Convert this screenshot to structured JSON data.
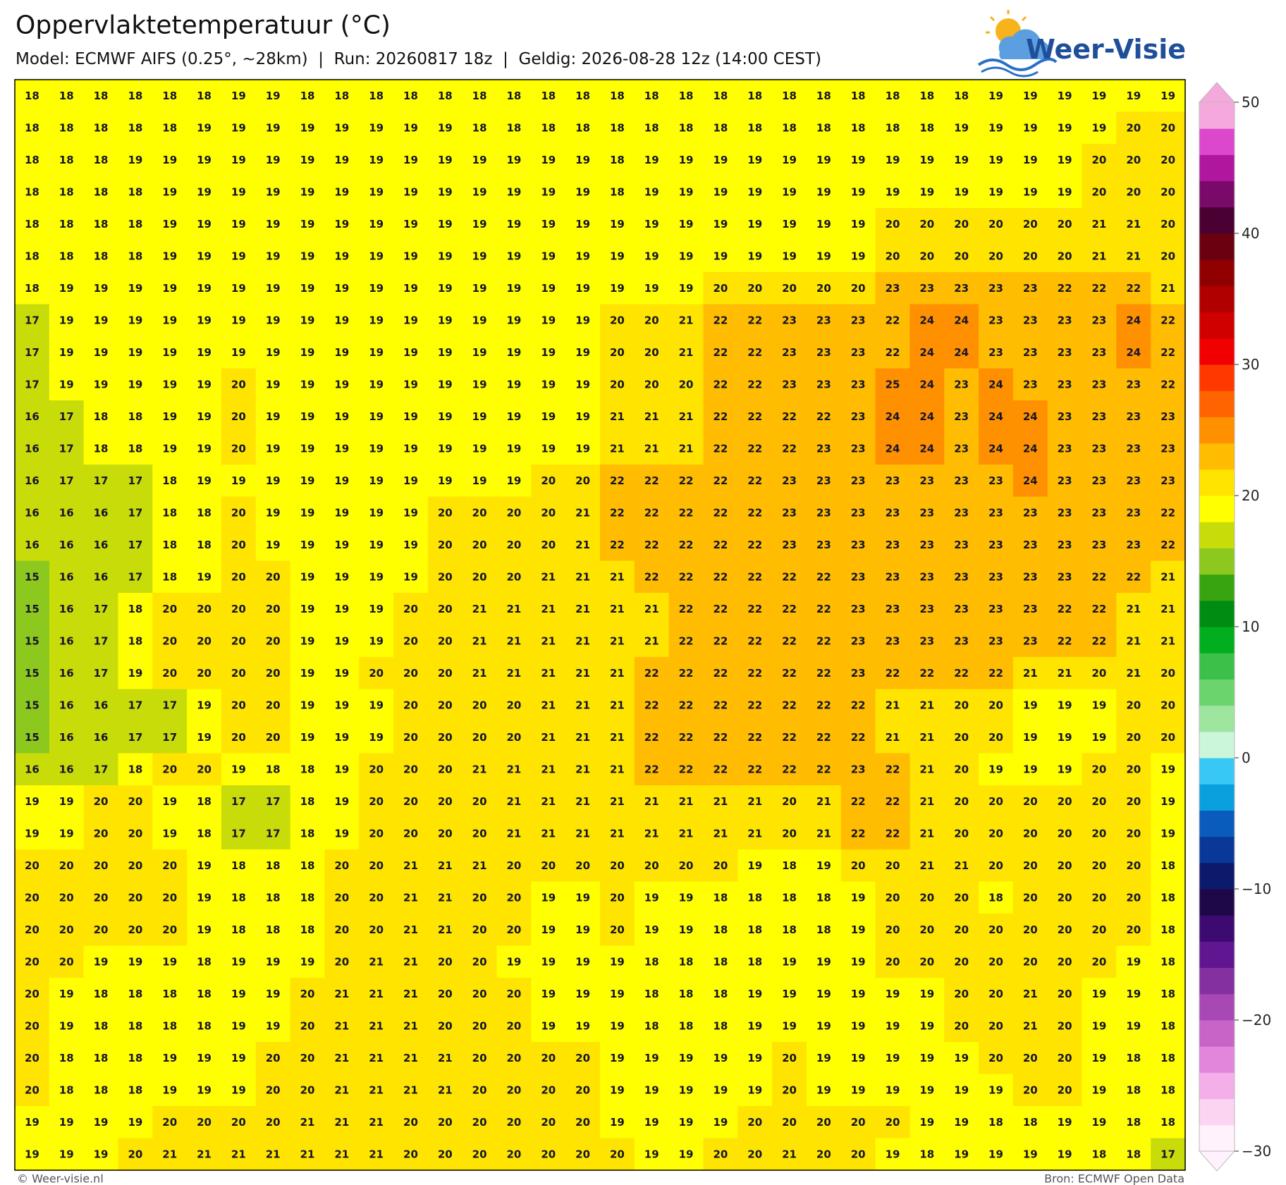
{
  "header": {
    "title": "Oppervlaktetemperatuur (°C)",
    "subtitle": "Model: ECMWF AIFS (0.25°, ~28km)  |  Run: 20260817 18z  |  Geldig: 2026-08-28 12z (14:00 CEST)",
    "logo": "Weer-Visie"
  },
  "map": {
    "rows": [
      [
        18,
        18,
        18,
        18,
        18,
        18,
        19,
        19,
        18,
        18,
        18,
        18,
        18,
        18,
        18,
        18,
        18,
        18,
        18,
        18,
        18,
        18,
        18,
        18,
        18,
        18,
        18,
        18,
        19,
        19,
        19,
        19,
        19,
        19
      ],
      [
        18,
        18,
        18,
        18,
        18,
        19,
        19,
        19,
        19,
        19,
        19,
        19,
        19,
        18,
        18,
        18,
        18,
        18,
        18,
        18,
        18,
        18,
        18,
        18,
        18,
        18,
        18,
        19,
        19,
        19,
        19,
        19,
        20,
        20
      ],
      [
        18,
        18,
        18,
        19,
        19,
        19,
        19,
        19,
        19,
        19,
        19,
        19,
        19,
        19,
        19,
        19,
        19,
        18,
        19,
        19,
        19,
        19,
        19,
        19,
        19,
        19,
        19,
        19,
        19,
        19,
        19,
        20,
        20,
        20
      ],
      [
        18,
        18,
        18,
        18,
        19,
        19,
        19,
        19,
        19,
        19,
        19,
        19,
        19,
        19,
        19,
        19,
        19,
        18,
        19,
        19,
        19,
        19,
        19,
        19,
        19,
        19,
        19,
        19,
        19,
        19,
        19,
        20,
        20,
        20
      ],
      [
        18,
        18,
        18,
        18,
        19,
        19,
        19,
        19,
        19,
        19,
        19,
        19,
        19,
        19,
        19,
        19,
        19,
        19,
        19,
        19,
        19,
        19,
        19,
        19,
        19,
        20,
        20,
        20,
        20,
        20,
        20,
        21,
        21,
        20
      ],
      [
        18,
        18,
        18,
        18,
        19,
        19,
        19,
        19,
        19,
        19,
        19,
        19,
        19,
        19,
        19,
        19,
        19,
        19,
        19,
        19,
        19,
        19,
        19,
        19,
        19,
        20,
        20,
        20,
        20,
        20,
        20,
        21,
        21,
        20
      ],
      [
        18,
        19,
        19,
        19,
        19,
        19,
        19,
        19,
        19,
        19,
        19,
        19,
        19,
        19,
        19,
        19,
        19,
        19,
        19,
        19,
        20,
        20,
        20,
        20,
        20,
        23,
        23,
        23,
        23,
        23,
        22,
        22,
        22,
        21
      ],
      [
        17,
        19,
        19,
        19,
        19,
        19,
        19,
        19,
        19,
        19,
        19,
        19,
        19,
        19,
        19,
        19,
        19,
        20,
        20,
        21,
        22,
        22,
        23,
        23,
        23,
        22,
        24,
        24,
        23,
        23,
        23,
        23,
        24,
        22
      ],
      [
        17,
        19,
        19,
        19,
        19,
        19,
        19,
        19,
        19,
        19,
        19,
        19,
        19,
        19,
        19,
        19,
        19,
        20,
        20,
        21,
        22,
        22,
        23,
        23,
        23,
        22,
        24,
        24,
        23,
        23,
        23,
        23,
        24,
        22
      ],
      [
        17,
        19,
        19,
        19,
        19,
        19,
        20,
        19,
        19,
        19,
        19,
        19,
        19,
        19,
        19,
        19,
        19,
        20,
        20,
        20,
        22,
        22,
        23,
        23,
        23,
        25,
        24,
        23,
        24,
        23,
        23,
        23,
        23,
        22
      ],
      [
        16,
        17,
        18,
        18,
        19,
        19,
        20,
        19,
        19,
        19,
        19,
        19,
        19,
        19,
        19,
        19,
        19,
        21,
        21,
        21,
        22,
        22,
        22,
        22,
        23,
        24,
        24,
        23,
        24,
        24,
        23,
        23,
        23,
        23
      ],
      [
        16,
        17,
        18,
        18,
        19,
        19,
        20,
        19,
        19,
        19,
        19,
        19,
        19,
        19,
        19,
        19,
        19,
        21,
        21,
        21,
        22,
        22,
        22,
        23,
        23,
        24,
        24,
        23,
        24,
        24,
        23,
        23,
        23,
        23
      ],
      [
        16,
        17,
        17,
        17,
        18,
        19,
        19,
        19,
        19,
        19,
        19,
        19,
        19,
        19,
        19,
        20,
        20,
        22,
        22,
        22,
        22,
        22,
        23,
        23,
        23,
        23,
        23,
        23,
        23,
        24,
        23,
        23,
        23,
        23
      ],
      [
        16,
        16,
        16,
        17,
        18,
        18,
        20,
        19,
        19,
        19,
        19,
        19,
        20,
        20,
        20,
        20,
        21,
        22,
        22,
        22,
        22,
        22,
        23,
        23,
        23,
        23,
        23,
        23,
        23,
        23,
        23,
        23,
        23,
        22
      ],
      [
        16,
        16,
        16,
        17,
        18,
        18,
        20,
        19,
        19,
        19,
        19,
        19,
        20,
        20,
        20,
        20,
        21,
        22,
        22,
        22,
        22,
        22,
        23,
        23,
        23,
        23,
        23,
        23,
        23,
        23,
        23,
        23,
        23,
        22
      ],
      [
        15,
        16,
        16,
        17,
        18,
        19,
        20,
        20,
        19,
        19,
        19,
        19,
        20,
        20,
        20,
        21,
        21,
        21,
        22,
        22,
        22,
        22,
        22,
        22,
        23,
        23,
        23,
        23,
        23,
        23,
        23,
        22,
        22,
        21
      ],
      [
        15,
        16,
        17,
        18,
        20,
        20,
        20,
        20,
        19,
        19,
        19,
        20,
        20,
        21,
        21,
        21,
        21,
        21,
        21,
        22,
        22,
        22,
        22,
        22,
        23,
        23,
        23,
        23,
        23,
        23,
        22,
        22,
        21,
        21
      ],
      [
        15,
        16,
        17,
        18,
        20,
        20,
        20,
        20,
        19,
        19,
        19,
        20,
        20,
        21,
        21,
        21,
        21,
        21,
        21,
        22,
        22,
        22,
        22,
        22,
        23,
        23,
        23,
        23,
        23,
        23,
        22,
        22,
        21,
        21
      ],
      [
        15,
        16,
        17,
        19,
        20,
        20,
        20,
        20,
        19,
        19,
        20,
        20,
        20,
        21,
        21,
        21,
        21,
        21,
        22,
        22,
        22,
        22,
        22,
        22,
        23,
        22,
        22,
        22,
        22,
        21,
        21,
        20,
        21,
        20
      ],
      [
        15,
        16,
        16,
        17,
        17,
        19,
        20,
        20,
        19,
        19,
        19,
        20,
        20,
        20,
        20,
        21,
        21,
        21,
        22,
        22,
        22,
        22,
        22,
        22,
        22,
        21,
        21,
        20,
        20,
        19,
        19,
        19,
        20,
        20
      ],
      [
        15,
        16,
        16,
        17,
        17,
        19,
        20,
        20,
        19,
        19,
        19,
        20,
        20,
        20,
        20,
        21,
        21,
        21,
        22,
        22,
        22,
        22,
        22,
        22,
        22,
        21,
        21,
        20,
        20,
        19,
        19,
        19,
        20,
        20
      ],
      [
        16,
        16,
        17,
        18,
        20,
        20,
        19,
        18,
        18,
        19,
        20,
        20,
        20,
        21,
        21,
        21,
        21,
        21,
        22,
        22,
        22,
        22,
        22,
        22,
        23,
        22,
        21,
        20,
        19,
        19,
        19,
        20,
        20,
        19
      ],
      [
        19,
        19,
        20,
        20,
        19,
        18,
        17,
        17,
        18,
        19,
        20,
        20,
        20,
        20,
        21,
        21,
        21,
        21,
        21,
        21,
        21,
        21,
        20,
        21,
        22,
        22,
        21,
        20,
        20,
        20,
        20,
        20,
        20,
        19
      ],
      [
        19,
        19,
        20,
        20,
        19,
        18,
        17,
        17,
        18,
        19,
        20,
        20,
        20,
        20,
        21,
        21,
        21,
        21,
        21,
        21,
        21,
        21,
        20,
        21,
        22,
        22,
        21,
        20,
        20,
        20,
        20,
        20,
        20,
        19
      ],
      [
        20,
        20,
        20,
        20,
        20,
        19,
        18,
        18,
        18,
        20,
        20,
        21,
        21,
        21,
        20,
        20,
        20,
        20,
        20,
        20,
        20,
        19,
        18,
        19,
        20,
        20,
        21,
        21,
        20,
        20,
        20,
        20,
        20,
        18
      ],
      [
        20,
        20,
        20,
        20,
        20,
        19,
        18,
        18,
        18,
        20,
        20,
        21,
        21,
        20,
        20,
        19,
        19,
        20,
        19,
        19,
        18,
        18,
        18,
        18,
        19,
        20,
        20,
        20,
        18,
        20,
        20,
        20,
        20,
        18
      ],
      [
        20,
        20,
        20,
        20,
        20,
        19,
        18,
        18,
        18,
        20,
        20,
        21,
        21,
        20,
        20,
        19,
        19,
        20,
        19,
        19,
        18,
        18,
        18,
        18,
        19,
        20,
        20,
        20,
        20,
        20,
        20,
        20,
        20,
        18
      ],
      [
        20,
        20,
        19,
        19,
        19,
        18,
        19,
        19,
        19,
        20,
        21,
        21,
        20,
        20,
        19,
        19,
        19,
        19,
        18,
        18,
        18,
        18,
        19,
        19,
        19,
        20,
        20,
        20,
        20,
        20,
        20,
        20,
        19,
        18
      ],
      [
        20,
        19,
        18,
        18,
        18,
        18,
        19,
        19,
        20,
        21,
        21,
        21,
        20,
        20,
        20,
        19,
        19,
        19,
        18,
        18,
        18,
        19,
        19,
        19,
        19,
        19,
        19,
        20,
        20,
        21,
        20,
        19,
        19,
        18
      ],
      [
        20,
        19,
        18,
        18,
        18,
        18,
        19,
        19,
        20,
        21,
        21,
        21,
        20,
        20,
        20,
        19,
        19,
        19,
        18,
        18,
        18,
        19,
        19,
        19,
        19,
        19,
        19,
        20,
        20,
        21,
        20,
        19,
        19,
        18
      ],
      [
        20,
        18,
        18,
        18,
        19,
        19,
        19,
        20,
        20,
        21,
        21,
        21,
        21,
        20,
        20,
        20,
        20,
        19,
        19,
        19,
        19,
        19,
        20,
        19,
        19,
        19,
        19,
        19,
        20,
        20,
        20,
        19,
        18,
        18
      ],
      [
        20,
        18,
        18,
        18,
        19,
        19,
        19,
        20,
        20,
        21,
        21,
        21,
        21,
        20,
        20,
        20,
        20,
        19,
        19,
        19,
        19,
        19,
        20,
        19,
        19,
        19,
        19,
        19,
        19,
        20,
        20,
        19,
        18,
        18
      ],
      [
        19,
        19,
        19,
        19,
        20,
        20,
        20,
        20,
        21,
        21,
        21,
        20,
        20,
        20,
        20,
        20,
        20,
        19,
        19,
        19,
        19,
        20,
        20,
        20,
        20,
        20,
        19,
        19,
        18,
        18,
        19,
        19,
        18,
        18
      ],
      [
        19,
        19,
        19,
        20,
        21,
        21,
        21,
        21,
        21,
        21,
        21,
        20,
        20,
        20,
        20,
        20,
        20,
        20,
        19,
        19,
        20,
        20,
        21,
        20,
        20,
        19,
        18,
        19,
        19,
        19,
        19,
        18,
        18,
        17
      ]
    ]
  },
  "colorbar": {
    "lim": [
      -30,
      50
    ],
    "ticks": [
      50,
      40,
      30,
      20,
      10,
      0,
      {
        "value": -10,
        "label": "−10"
      },
      {
        "value": -20,
        "label": "−20"
      },
      {
        "value": -30,
        "label": "−30"
      }
    ],
    "colors": [
      "#fff2fc",
      "#fbd4f2",
      "#f4aee8",
      "#e286dc",
      "#c864c8",
      "#a848b4",
      "#8430a0",
      "#601690",
      "#3c0a70",
      "#1e0848",
      "#0c1a6c",
      "#0a3898",
      "#0a5cbc",
      "#0aa0e0",
      "#38c8f6",
      "#ccf6da",
      "#9ee6a0",
      "#6cd46c",
      "#3cc04a",
      "#00ae1e",
      "#008c12",
      "#38a410",
      "#8cc81e",
      "#c8dc0a",
      "#ffff00",
      "#ffe400",
      "#ffbc00",
      "#ff9000",
      "#ff6400",
      "#ff3800",
      "#f00000",
      "#d00000",
      "#b00000",
      "#900000",
      "#6a0010",
      "#4a0032",
      "#7a0a6a",
      "#b0169e",
      "#dc48cc",
      "#f4a8dc"
    ]
  },
  "footer": {
    "credit": "© Weer-visie.nl",
    "source": "Bron: ECMWF Open Data"
  }
}
